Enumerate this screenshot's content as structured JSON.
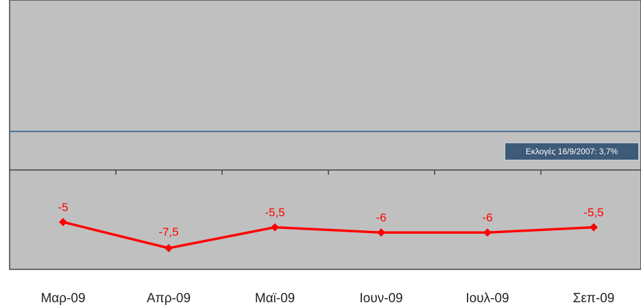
{
  "chart_data": {
    "type": "line",
    "categories": [
      "Μαρ-09",
      "Απρ-09",
      "Μαϊ-09",
      "Ιουν-09",
      "Ιουλ-09",
      "Σεπ-09"
    ],
    "series": [
      {
        "values": [
          -5,
          -7.5,
          -5.5,
          -6,
          -6,
          -5.5
        ],
        "labels": [
          "-5",
          "-7,5",
          "-5,5",
          "-6",
          "-6",
          "-5,5"
        ]
      }
    ],
    "reference_line": {
      "value": 3.7,
      "label": "Εκλογές 16/9/2007: 3,7%"
    },
    "ylim": [
      -10,
      12
    ],
    "title": "",
    "xlabel": "",
    "ylabel": "",
    "grid": false,
    "colors": {
      "series": "#ff0000",
      "plot_bg": "#c0c0c0",
      "reference_line": "#4a6f8f",
      "annotation_bg": "#3d5a78"
    }
  }
}
